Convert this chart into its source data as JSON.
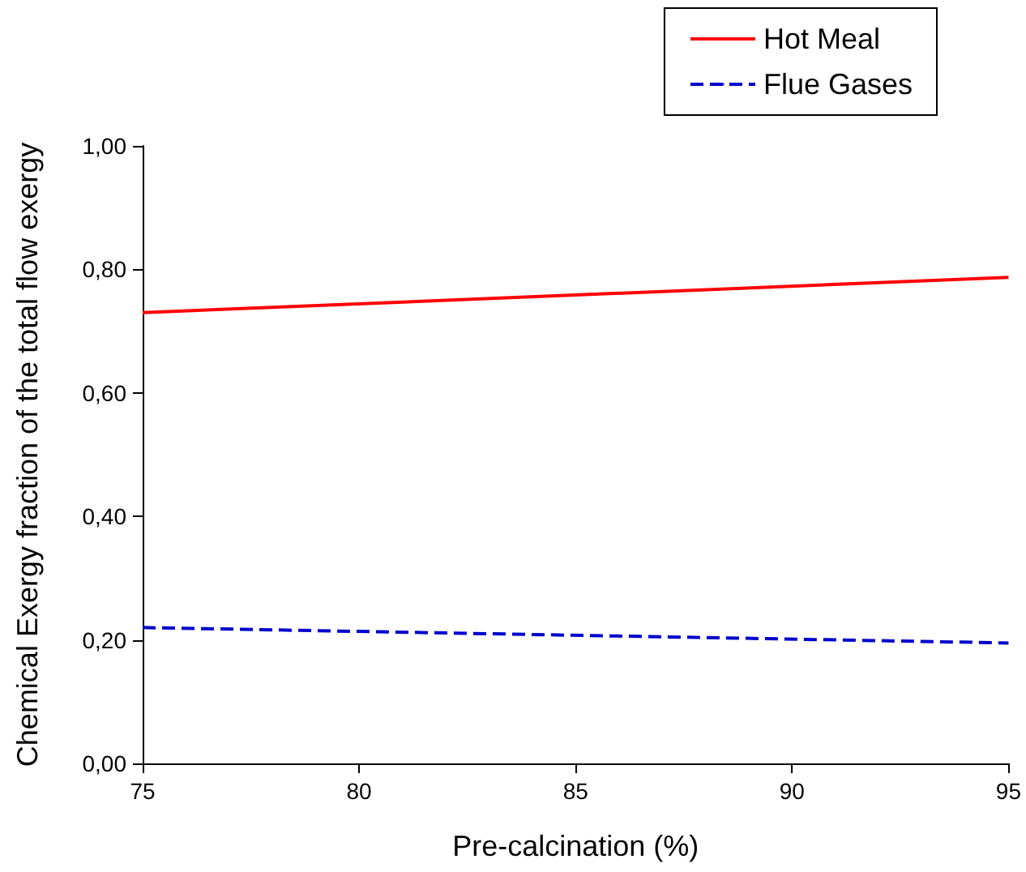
{
  "chart_data": {
    "type": "line",
    "xlabel": "Pre-calcination (%)",
    "ylabel": "Chemical Exergy fraction of the total flow exergy",
    "x": [
      75,
      95
    ],
    "series": [
      {
        "name": "Hot Meal",
        "color": "#ff0000",
        "values": [
          0.73,
          0.787
        ],
        "line_style": "solid"
      },
      {
        "name": "Flue Gases",
        "color": "#0000cc",
        "values": [
          0.22,
          0.195
        ],
        "line_style": "dashed"
      }
    ],
    "xlim": [
      75,
      95
    ],
    "xticks": [
      75,
      80,
      85,
      90,
      95
    ],
    "ylim": [
      0,
      1
    ],
    "yticks": [
      {
        "value": 0,
        "label": "0,00"
      },
      {
        "value": 0.2,
        "label": "0,20"
      },
      {
        "value": 0.4,
        "label": "0,40"
      },
      {
        "value": 0.6,
        "label": "0,60"
      },
      {
        "value": 0.8,
        "label": "0,80"
      },
      {
        "value": 1,
        "label": "1,00"
      }
    ],
    "grid": false,
    "legend": "top right",
    "marker": "none"
  }
}
